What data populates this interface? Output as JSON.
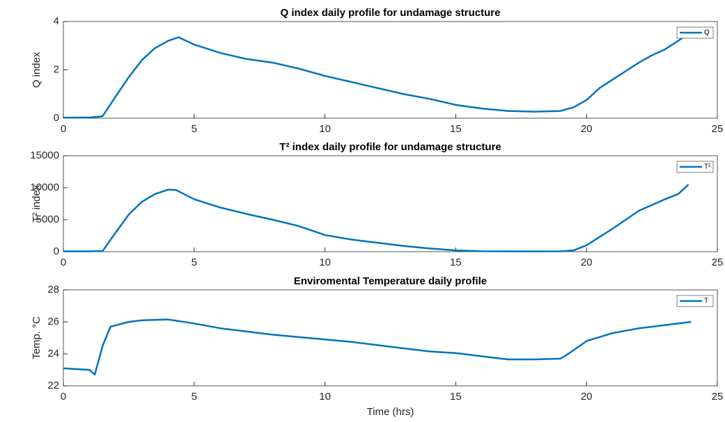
{
  "chart_data": [
    {
      "type": "line",
      "title": "Q index daily profile for undamage structure",
      "y_label": "Q index",
      "x": [
        0,
        1,
        1.5,
        2,
        2.5,
        3,
        3.5,
        4,
        4.4,
        5,
        6,
        7,
        8,
        9,
        10,
        11,
        12,
        13,
        14,
        15,
        16,
        17,
        18,
        19,
        19.5,
        20,
        20.5,
        21,
        21.5,
        22,
        22.5,
        23,
        23.5,
        23.9
      ],
      "series": [
        {
          "name": "Q",
          "color": "#0072BD",
          "values": [
            0.02,
            0.03,
            0.08,
            0.9,
            1.7,
            2.4,
            2.9,
            3.2,
            3.35,
            3.05,
            2.7,
            2.45,
            2.3,
            2.05,
            1.75,
            1.5,
            1.25,
            1.0,
            0.8,
            0.55,
            0.4,
            0.3,
            0.27,
            0.3,
            0.45,
            0.75,
            1.25,
            1.6,
            1.95,
            2.3,
            2.6,
            2.85,
            3.2,
            3.5
          ]
        }
      ],
      "xlim": [
        0,
        25
      ],
      "xticks": [
        0,
        5,
        10,
        15,
        20,
        25
      ],
      "ylim": [
        0,
        4
      ],
      "yticks": [
        0,
        2,
        4
      ],
      "legend": "upper right"
    },
    {
      "type": "line",
      "title": "T² index daily profile for undamage structure",
      "y_label": "T² index",
      "x": [
        0,
        1,
        1.5,
        2,
        2.5,
        3,
        3.5,
        4,
        4.3,
        5,
        6,
        7,
        8,
        9,
        10,
        11,
        12,
        13,
        14,
        15,
        16,
        17,
        18,
        19,
        19.5,
        20,
        20.5,
        21,
        21.5,
        22,
        22.5,
        23,
        23.5,
        23.9
      ],
      "series": [
        {
          "name": "T²",
          "color": "#0072BD",
          "values": [
            50,
            50,
            100,
            3000,
            5800,
            7800,
            9000,
            9700,
            9650,
            8200,
            6900,
            5900,
            5000,
            4000,
            2600,
            1900,
            1400,
            900,
            500,
            200,
            70,
            50,
            40,
            60,
            200,
            1000,
            2300,
            3600,
            5000,
            6400,
            7300,
            8200,
            9000,
            10500
          ]
        }
      ],
      "xlim": [
        0,
        25
      ],
      "xticks": [
        0,
        5,
        10,
        15,
        20,
        25
      ],
      "ylim": [
        0,
        15000
      ],
      "yticks": [
        0,
        5000,
        10000,
        15000
      ],
      "legend": "upper right"
    },
    {
      "type": "line",
      "title": "Enviromental Temperature daily profile",
      "y_label": "Temp. °C",
      "x_label": "Time (hrs)",
      "x": [
        0,
        1,
        1.2,
        1.5,
        1.8,
        2.5,
        3,
        4,
        5,
        6,
        7,
        8,
        9,
        10,
        11,
        12,
        13,
        14,
        15,
        16,
        17,
        18,
        19,
        19.3,
        20,
        21,
        22,
        23,
        24
      ],
      "series": [
        {
          "name": "T",
          "color": "#0072BD",
          "values": [
            23.1,
            23.0,
            22.7,
            24.5,
            25.7,
            26.0,
            26.1,
            26.15,
            25.9,
            25.6,
            25.4,
            25.2,
            25.05,
            24.9,
            24.75,
            24.55,
            24.35,
            24.15,
            24.05,
            23.85,
            23.65,
            23.65,
            23.7,
            24.0,
            24.8,
            25.3,
            25.6,
            25.8,
            26.0
          ]
        }
      ],
      "xlim": [
        0,
        25
      ],
      "xticks": [
        0,
        5,
        10,
        15,
        20,
        25
      ],
      "ylim": [
        22,
        28
      ],
      "yticks": [
        22,
        24,
        26,
        28
      ],
      "legend": "upper right"
    }
  ]
}
